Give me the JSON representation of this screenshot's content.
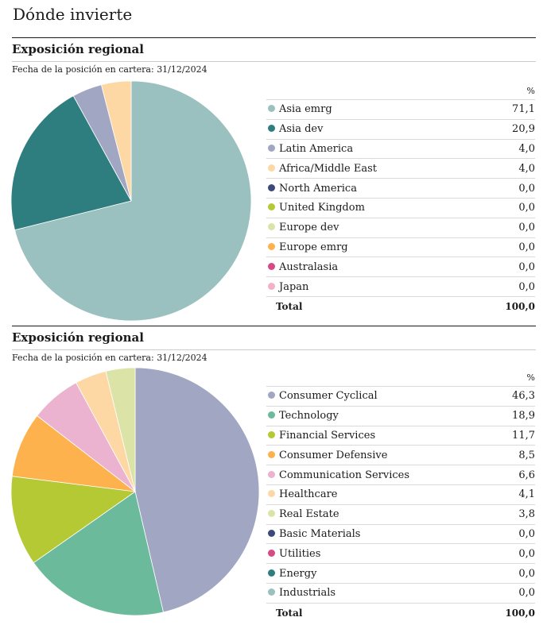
{
  "page_title": "Dónde invierte",
  "pct_header": "%",
  "total_label": "Total",
  "chart_data": [
    {
      "type": "pie",
      "title": "Exposición regional",
      "as_of": "Fecha de la posición en cartera: 31/12/2024",
      "total_value": "100,0",
      "categories": [
        "Asia emrg",
        "Asia dev",
        "Latin America",
        "Africa/Middle East",
        "North America",
        "United Kingdom",
        "Europe dev",
        "Europe emrg",
        "Australasia",
        "Japan"
      ],
      "values": [
        71.1,
        20.9,
        4.0,
        4.0,
        0.0,
        0.0,
        0.0,
        0.0,
        0.0,
        0.0
      ],
      "value_labels": [
        "71,1",
        "20,9",
        "4,0",
        "4,0",
        "0,0",
        "0,0",
        "0,0",
        "0,0",
        "0,0",
        "0,0"
      ],
      "colors": [
        "#9bc0c0",
        "#2e7d7f",
        "#a1a7c3",
        "#fdd8a5",
        "#3c4a7a",
        "#b5c935",
        "#dbe4a6",
        "#fdb24e",
        "#d64a86",
        "#f1b2c9"
      ]
    },
    {
      "type": "pie",
      "title": "Exposición regional",
      "as_of": "Fecha de la posición en cartera: 31/12/2024",
      "total_value": "100,0",
      "categories": [
        "Consumer Cyclical",
        "Technology",
        "Financial Services",
        "Consumer Defensive",
        "Communication Services",
        "Healthcare",
        "Real Estate",
        "Basic Materials",
        "Utilities",
        "Energy",
        "Industrials"
      ],
      "values": [
        46.3,
        18.9,
        11.7,
        8.5,
        6.6,
        4.1,
        3.8,
        0.0,
        0.0,
        0.0,
        0.0
      ],
      "value_labels": [
        "46,3",
        "18,9",
        "11,7",
        "8,5",
        "6,6",
        "4,1",
        "3,8",
        "0,0",
        "0,0",
        "0,0",
        "0,0"
      ],
      "colors": [
        "#a1a7c3",
        "#6bba9c",
        "#b5c935",
        "#fdb24e",
        "#ebb3cf",
        "#fdd8a5",
        "#dbe4a6",
        "#3c4a7a",
        "#d64a86",
        "#2e7d7f",
        "#9bc0c0"
      ]
    }
  ]
}
